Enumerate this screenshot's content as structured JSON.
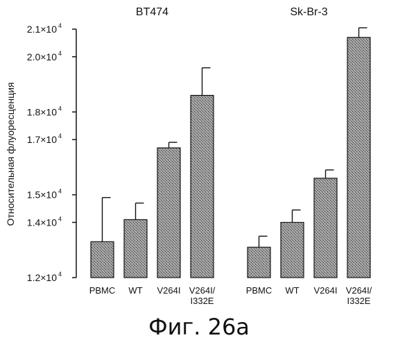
{
  "caption": "Фиг. 26а",
  "chart_data": {
    "type": "bar",
    "ylabel": "Относительная флуоресценция",
    "ylim": [
      12000,
      21000
    ],
    "yticks": [
      {
        "value": 12000,
        "mantissa": "1.2"
      },
      {
        "value": 14000,
        "mantissa": "1.4"
      },
      {
        "value": 15000,
        "mantissa": "1.5"
      },
      {
        "value": 17000,
        "mantissa": "1.7"
      },
      {
        "value": 18000,
        "mantissa": "1.8"
      },
      {
        "value": 20000,
        "mantissa": "2.0"
      },
      {
        "value": 21000,
        "mantissa": "2.1"
      }
    ],
    "ytick_suffix": "×10",
    "ytick_exponent": "4",
    "groups": [
      {
        "title": "BT474",
        "categories": [
          "PBMC",
          "WT",
          "V264I",
          "V264I/\nI332E"
        ],
        "values": [
          13300,
          14100,
          16700,
          18600
        ],
        "errors": [
          1600,
          600,
          200,
          1000
        ]
      },
      {
        "title": "Sk-Br-3",
        "categories": [
          "PBMC",
          "WT",
          "V264I",
          "V264I/\nI332E"
        ],
        "values": [
          13100,
          14000,
          15600,
          20700
        ],
        "errors": [
          400,
          450,
          300,
          350
        ]
      }
    ],
    "grid": false,
    "legend": "none"
  }
}
